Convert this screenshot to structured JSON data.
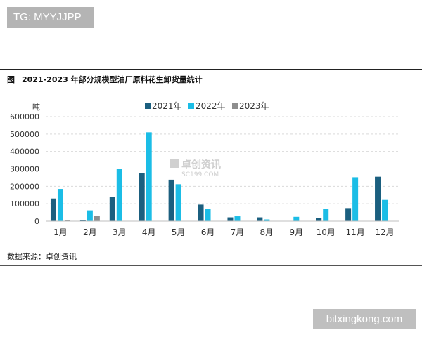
{
  "badge": {
    "text": "TG: MYYJJPP"
  },
  "figure": {
    "tag": "图",
    "title": "2021-2023 年部分规模型油厂原料花生卸货量统计",
    "source": "数据来源：卓创资讯",
    "watermark_cn": "卓创资讯",
    "watermark_en": "SC199.COM"
  },
  "site_badge": {
    "text": "bitxingkong.com"
  },
  "colors": {
    "s2021": "#1b5f7f",
    "s2022": "#1bbde6",
    "s2023": "#8e8e8e",
    "grid": "#d9d9d9"
  },
  "chart_data": {
    "type": "bar",
    "title": "2021-2023 年部分规模型油厂原料花生卸货量统计",
    "ylabel": "吨",
    "xlabel": "",
    "ylim": [
      0,
      600000
    ],
    "yticks": [
      0,
      100000,
      200000,
      300000,
      400000,
      500000,
      600000
    ],
    "ytick_labels": [
      "0",
      "100000",
      "200000",
      "300000",
      "400000",
      "500000",
      "600000"
    ],
    "grid": true,
    "legend_position": "top",
    "categories": [
      "1月",
      "2月",
      "3月",
      "4月",
      "5月",
      "6月",
      "7月",
      "8月",
      "9月",
      "10月",
      "11月",
      "12月"
    ],
    "series": [
      {
        "name": "2021年",
        "values": [
          130000,
          5000,
          140000,
          275000,
          238000,
          95000,
          22000,
          22000,
          0,
          18000,
          75000,
          255000
        ]
      },
      {
        "name": "2022年",
        "values": [
          185000,
          62000,
          298000,
          510000,
          212000,
          70000,
          28000,
          10000,
          25000,
          72000,
          252000,
          122000
        ]
      },
      {
        "name": "2023年",
        "values": [
          8000,
          30000,
          null,
          null,
          null,
          null,
          null,
          null,
          null,
          null,
          null,
          null
        ]
      }
    ]
  }
}
